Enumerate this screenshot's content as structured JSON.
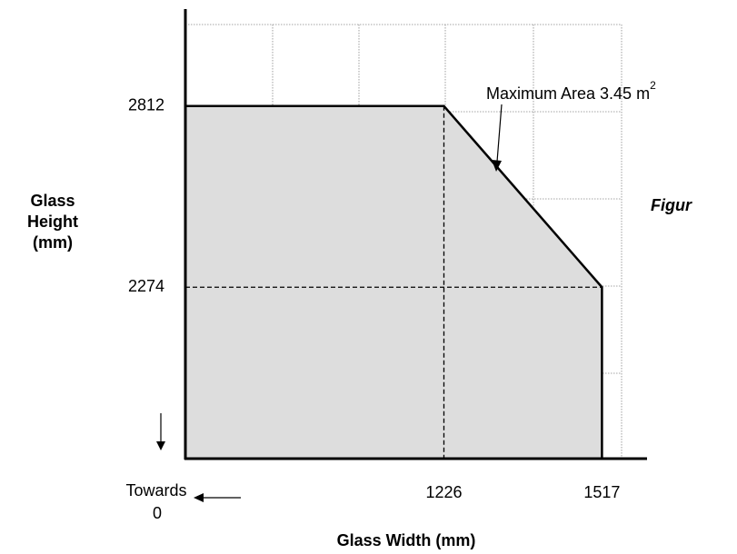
{
  "chart_data": {
    "type": "area",
    "x": [
      750,
      1226,
      1517
    ],
    "values": [
      2812,
      2812,
      2274
    ],
    "xlim": [
      750,
      1600
    ],
    "ylim": [
      1765,
      3100
    ],
    "xticks": [
      1226,
      1517
    ],
    "yticks": [
      2812,
      2274
    ],
    "xlabel": "Glass Width (mm)",
    "ylabel": [
      "Glass",
      "Height",
      "(mm)"
    ],
    "annotation": {
      "text": "Maximum Area 3.45 m",
      "sup": "2"
    },
    "origin_note": [
      "Towards",
      "0"
    ],
    "side_note": "Figur",
    "fill": "#dddddd",
    "line_color": "#000000"
  }
}
